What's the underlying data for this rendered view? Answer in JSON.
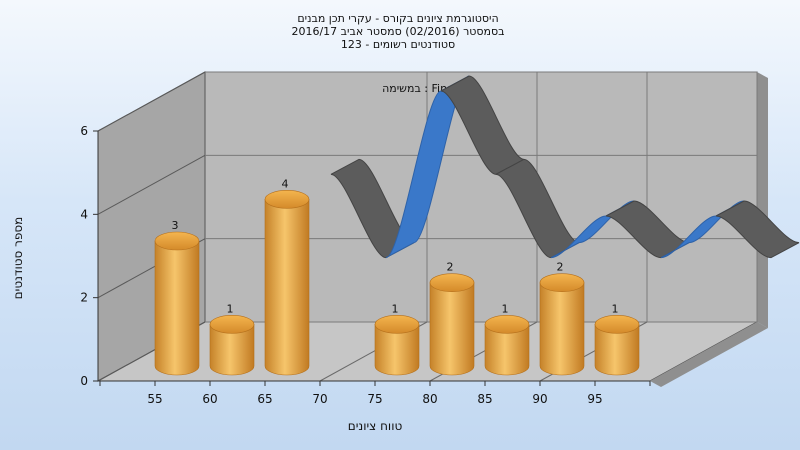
{
  "chart_data": {
    "type": "bar",
    "title_lines": [
      "היסטוגרמת ציונים בקורס - עקרי תכן מבנים",
      "בסמסטר  (02/2016)  סמסטר אביב 2016/17",
      "סטודנטים רשומים - 123"
    ],
    "subtitle": "במשימה : Final_B",
    "xlabel": "טווח ציונים",
    "ylabel": "מספר סטודנטים",
    "ylim": [
      0,
      6
    ],
    "yticks": [
      0,
      2,
      4,
      6
    ],
    "xticks": [
      "55",
      "60",
      "65",
      "70",
      "75",
      "80",
      "85",
      "90",
      "95"
    ],
    "series": [
      {
        "type": "bar",
        "color": "#e9a740",
        "categories": [
          "55",
          "60",
          "65",
          "70",
          "75",
          "80",
          "85",
          "90",
          "95"
        ],
        "values": [
          3,
          1,
          4,
          0,
          1,
          2,
          1,
          2,
          1
        ]
      },
      {
        "type": "line",
        "x": [
          60,
          65,
          70,
          75,
          80,
          85,
          90,
          95,
          100
        ],
        "values": [
          4,
          2,
          6,
          4,
          2,
          3,
          2,
          3,
          2
        ]
      }
    ],
    "grid": true,
    "colors": {
      "ribbon_front": "#3a78c9",
      "ribbon_back": "#5c5c5c",
      "wall": "#a8a8a8",
      "floor": "#c4c4c4"
    }
  }
}
